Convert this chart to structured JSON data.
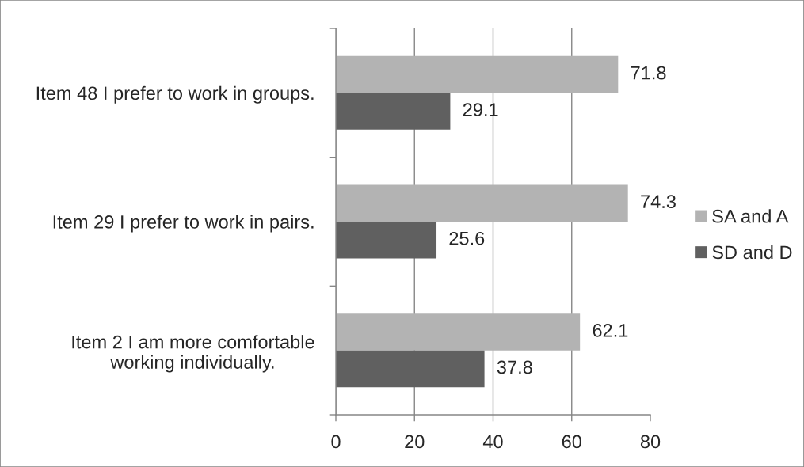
{
  "chart_data": {
    "type": "bar",
    "orientation": "horizontal",
    "categories": [
      "Item 48 I prefer to work in groups.",
      "Item 29 I prefer to work in pairs.",
      "Item 2 I am more comfortable\nworking individually."
    ],
    "series": [
      {
        "name": "SA and A",
        "color": "#b3b3b3",
        "values": [
          71.8,
          74.3,
          62.1
        ]
      },
      {
        "name": "SD and D",
        "color": "#606060",
        "values": [
          29.1,
          25.6,
          37.8
        ]
      }
    ],
    "xlim": [
      0,
      80
    ],
    "xticks": [
      0,
      20,
      40,
      60,
      80
    ],
    "grid": "x",
    "legend": "right",
    "data_labels": true
  }
}
